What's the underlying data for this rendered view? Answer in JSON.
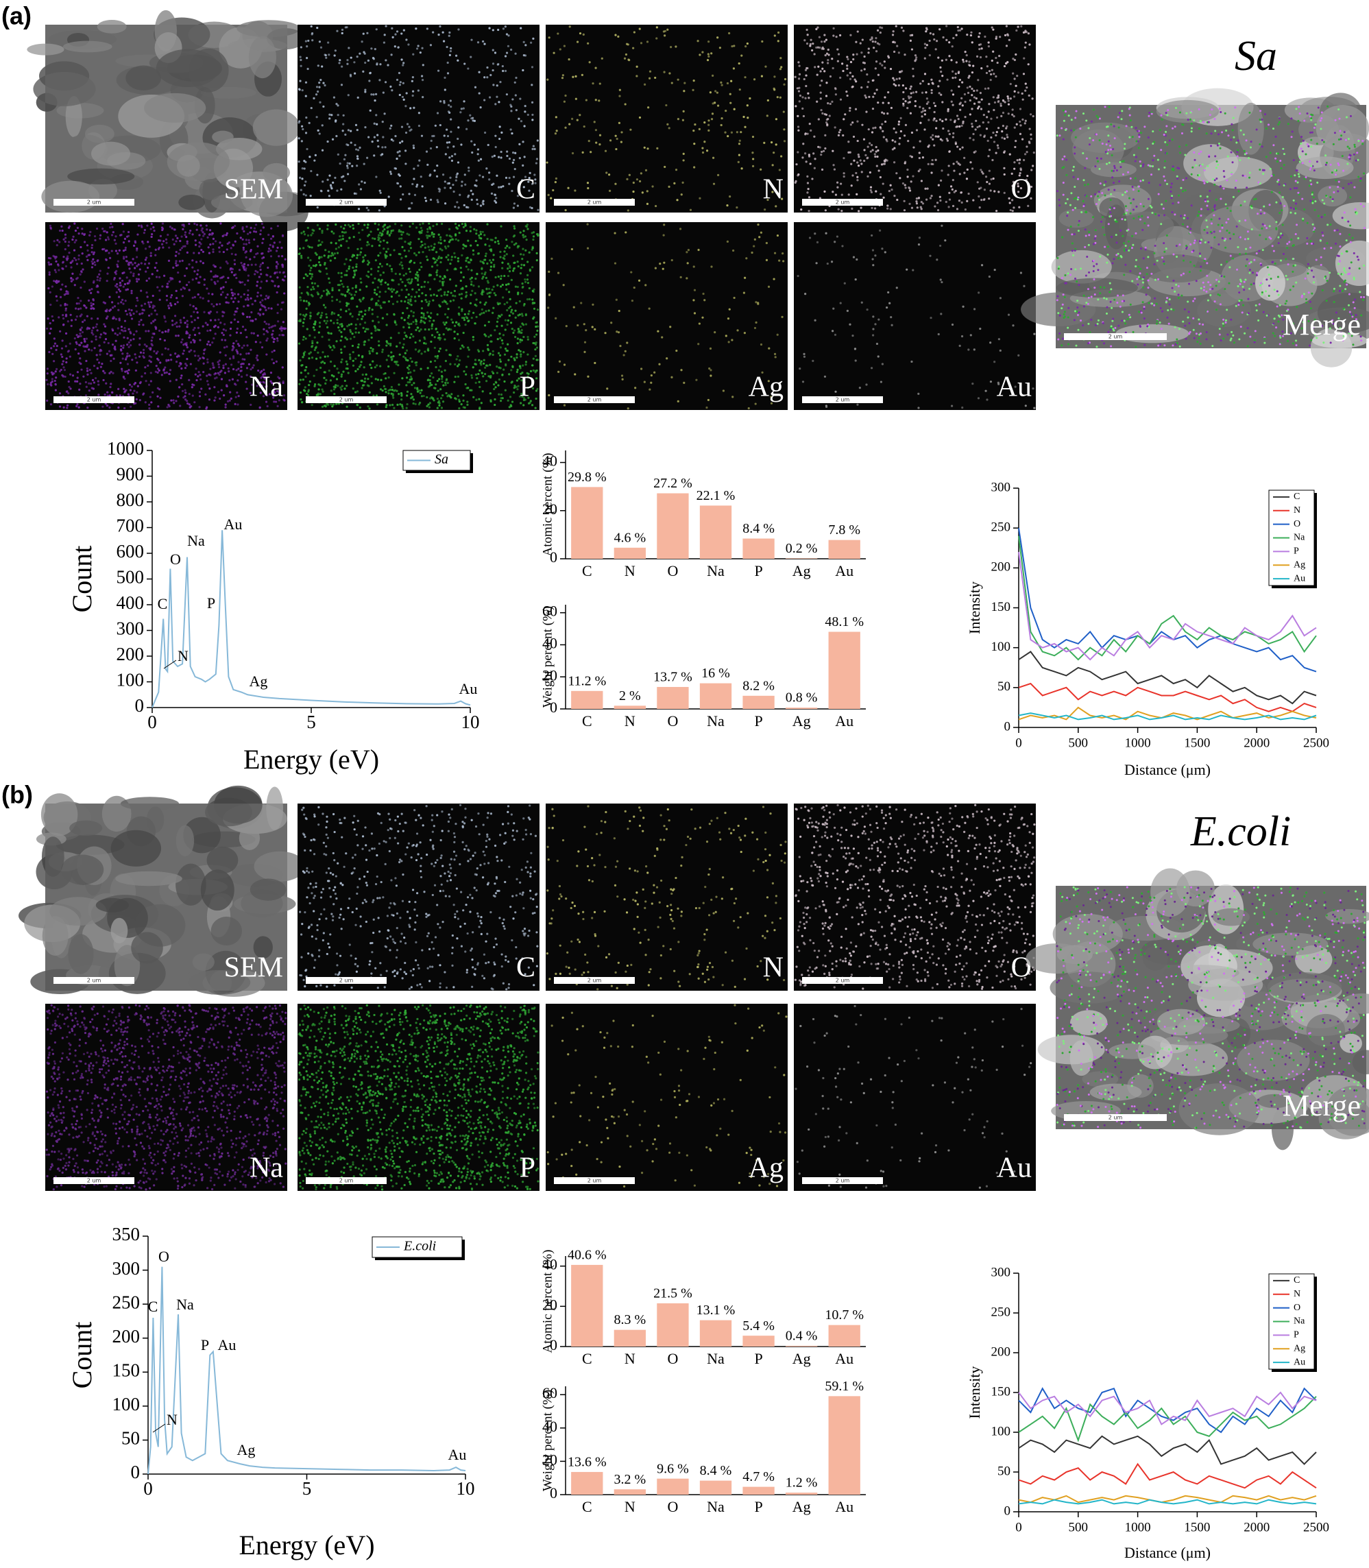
{
  "panels": [
    {
      "label": "(a)",
      "title": "Sa",
      "merge_label": "Merge",
      "scale_bar_label": "2 um",
      "tiles": [
        {
          "label": "SEM",
          "color": "#9a9a9a"
        },
        {
          "label": "C",
          "color": "#a9b8cc"
        },
        {
          "label": "N",
          "color": "#b4b464"
        },
        {
          "label": "O",
          "color": "#ccbcc6"
        },
        {
          "label": "Na",
          "color": "#7a2aa8"
        },
        {
          "label": "P",
          "color": "#2fa834"
        },
        {
          "label": "Ag",
          "color": "#a8a858"
        },
        {
          "label": "Au",
          "color": "#8c8c8c"
        }
      ]
    },
    {
      "label": "(b)",
      "title": "E.coli",
      "merge_label": "Merge",
      "scale_bar_label": "2 um",
      "tiles": [
        {
          "label": "SEM",
          "color": "#9a9a9a"
        },
        {
          "label": "C",
          "color": "#a9b8cc"
        },
        {
          "label": "N",
          "color": "#b4b464"
        },
        {
          "label": "O",
          "color": "#ccbcc6"
        },
        {
          "label": "Na",
          "color": "#6a2a90"
        },
        {
          "label": "P",
          "color": "#2fa834"
        },
        {
          "label": "Ag",
          "color": "#a8a858"
        },
        {
          "label": "Au",
          "color": "#8c8c8c"
        }
      ]
    }
  ],
  "chart_data": [
    {
      "type": "line",
      "xlabel": "Energy (eV)",
      "ylabel": "Count",
      "xlim": [
        0,
        10
      ],
      "xticks": [
        0,
        5,
        10
      ],
      "ylim": [
        0,
        1000
      ],
      "yticks": [
        0,
        100,
        200,
        300,
        400,
        500,
        600,
        700,
        800,
        900,
        1000
      ],
      "x": [
        0,
        0.1,
        0.2,
        0.35,
        0.42,
        0.48,
        0.57,
        0.65,
        0.8,
        0.95,
        1.1,
        1.2,
        1.35,
        1.55,
        1.67,
        1.8,
        2.0,
        2.1,
        2.2,
        2.3,
        2.4,
        2.55,
        2.8,
        3.0,
        3.5,
        4,
        5,
        6,
        7,
        8,
        9,
        9.5,
        9.7,
        9.85,
        10
      ],
      "series": [
        {
          "name": "Sa",
          "color": "#86b8d8",
          "values": [
            0,
            30,
            60,
            345,
            150,
            140,
            540,
            180,
            160,
            170,
            585,
            160,
            120,
            110,
            100,
            110,
            130,
            320,
            690,
            400,
            120,
            70,
            60,
            50,
            40,
            35,
            28,
            22,
            18,
            15,
            14,
            16,
            25,
            15,
            10
          ]
        }
      ],
      "annotations": [
        "C",
        "N",
        "O",
        "Na",
        "P",
        "Au",
        "Ag",
        "Au"
      ]
    },
    {
      "type": "bar",
      "ylabel": "Atomic percent (%)",
      "categories": [
        "C",
        "N",
        "O",
        "Na",
        "P",
        "Ag",
        "Au"
      ],
      "values": [
        29.8,
        4.6,
        27.2,
        22.1,
        8.4,
        0.2,
        7.8
      ],
      "value_labels": [
        "29.8 %",
        "4.6 %",
        "27.2 %",
        "22.1 %",
        "8.4 %",
        "0.2 %",
        "7.8 %"
      ],
      "color": "#f6b59e",
      "ylim": [
        0,
        45
      ],
      "yticks": [
        0,
        20,
        40
      ]
    },
    {
      "type": "bar",
      "ylabel": "Weight percent (%)",
      "categories": [
        "C",
        "N",
        "O",
        "Na",
        "P",
        "Ag",
        "Au"
      ],
      "values": [
        11.2,
        2,
        13.7,
        16,
        8.2,
        0.8,
        48.1
      ],
      "value_labels": [
        "11.2 %",
        "2 %",
        "13.7 %",
        "16 %",
        "8.2 %",
        "0.8 %",
        "48.1 %"
      ],
      "color": "#f6b59e",
      "ylim": [
        0,
        65
      ],
      "yticks": [
        0,
        20,
        40,
        60
      ]
    },
    {
      "type": "line",
      "xlabel": "Distance (μm)",
      "ylabel": "Intensity",
      "xlim": [
        0,
        2500
      ],
      "xticks": [
        0,
        500,
        1000,
        1500,
        2000,
        2500
      ],
      "ylim": [
        0,
        300
      ],
      "yticks": [
        0,
        50,
        100,
        150,
        200,
        250,
        300
      ],
      "x": [
        0,
        100,
        200,
        300,
        400,
        500,
        600,
        700,
        800,
        900,
        1000,
        1100,
        1200,
        1300,
        1400,
        1500,
        1600,
        1700,
        1800,
        1900,
        2000,
        2100,
        2200,
        2300,
        2400,
        2500
      ],
      "series": [
        {
          "name": "C",
          "color": "#333333",
          "values": [
            85,
            95,
            75,
            70,
            65,
            75,
            70,
            60,
            65,
            70,
            55,
            60,
            65,
            55,
            60,
            50,
            65,
            55,
            45,
            50,
            40,
            35,
            40,
            30,
            45,
            40
          ]
        },
        {
          "name": "N",
          "color": "#e8332a",
          "values": [
            50,
            55,
            40,
            45,
            50,
            35,
            45,
            40,
            45,
            40,
            50,
            45,
            40,
            40,
            45,
            40,
            35,
            40,
            30,
            35,
            25,
            20,
            25,
            20,
            30,
            25
          ]
        },
        {
          "name": "O",
          "color": "#1f5fc7",
          "values": [
            250,
            150,
            110,
            100,
            110,
            105,
            120,
            100,
            115,
            110,
            115,
            105,
            120,
            110,
            115,
            100,
            110,
            115,
            105,
            100,
            95,
            100,
            85,
            90,
            75,
            70
          ]
        },
        {
          "name": "Na",
          "color": "#3cae5a",
          "values": [
            240,
            120,
            95,
            90,
            100,
            85,
            100,
            90,
            110,
            95,
            115,
            105,
            130,
            140,
            120,
            110,
            125,
            115,
            110,
            120,
            115,
            105,
            110,
            120,
            95,
            115
          ]
        },
        {
          "name": "P",
          "color": "#b97de0",
          "values": [
            220,
            110,
            100,
            105,
            95,
            100,
            85,
            100,
            90,
            110,
            120,
            100,
            115,
            110,
            130,
            120,
            115,
            110,
            105,
            125,
            115,
            110,
            120,
            140,
            115,
            125
          ]
        },
        {
          "name": "Ag",
          "color": "#e0a020",
          "values": [
            10,
            15,
            12,
            15,
            10,
            25,
            15,
            12,
            15,
            10,
            20,
            15,
            12,
            18,
            15,
            10,
            15,
            20,
            12,
            15,
            18,
            12,
            15,
            20,
            15,
            12
          ]
        },
        {
          "name": "Au",
          "color": "#22b5c8",
          "values": [
            15,
            18,
            15,
            12,
            15,
            10,
            12,
            15,
            10,
            12,
            15,
            10,
            12,
            15,
            10,
            12,
            10,
            15,
            12,
            10,
            12,
            15,
            10,
            12,
            10,
            15
          ]
        }
      ]
    },
    {
      "type": "line",
      "xlabel": "Energy (eV)",
      "ylabel": "Count",
      "xlim": [
        0,
        10
      ],
      "xticks": [
        0,
        5,
        10
      ],
      "ylim": [
        0,
        350
      ],
      "yticks": [
        0,
        50,
        100,
        150,
        200,
        250,
        300,
        350
      ],
      "x": [
        0,
        0.08,
        0.16,
        0.24,
        0.32,
        0.44,
        0.52,
        0.6,
        0.75,
        0.95,
        1.05,
        1.2,
        1.4,
        1.6,
        1.8,
        1.95,
        2.05,
        2.15,
        2.3,
        2.5,
        2.9,
        3.2,
        3.6,
        4,
        5,
        6,
        7,
        8,
        9,
        9.5,
        9.7,
        9.85,
        10
      ],
      "series": [
        {
          "name": "E.coli",
          "color": "#86b8d8",
          "values": [
            0,
            40,
            230,
            60,
            40,
            305,
            80,
            30,
            40,
            235,
            60,
            25,
            20,
            25,
            30,
            175,
            180,
            120,
            30,
            20,
            15,
            12,
            10,
            9,
            8,
            7,
            6,
            6,
            5,
            6,
            10,
            6,
            5
          ]
        }
      ],
      "annotations": [
        "C",
        "N",
        "O",
        "Na",
        "P",
        "Au",
        "Ag",
        "Au"
      ]
    },
    {
      "type": "bar",
      "ylabel": "Atomic percent (%)",
      "categories": [
        "C",
        "N",
        "O",
        "Na",
        "P",
        "Ag",
        "Au"
      ],
      "values": [
        40.6,
        8.3,
        21.5,
        13.1,
        5.4,
        0.4,
        10.7
      ],
      "value_labels": [
        "40.6 %",
        "8.3 %",
        "21.5 %",
        "13.1 %",
        "5.4 %",
        "0.4 %",
        "10.7 %"
      ],
      "color": "#f6b59e",
      "ylim": [
        0,
        45
      ],
      "yticks": [
        0,
        20,
        40
      ]
    },
    {
      "type": "bar",
      "ylabel": "Weight percent (%)",
      "categories": [
        "C",
        "N",
        "O",
        "Na",
        "P",
        "Ag",
        "Au"
      ],
      "values": [
        13.6,
        3.2,
        9.6,
        8.4,
        4.7,
        1.2,
        59.1
      ],
      "value_labels": [
        "13.6 %",
        "3.2 %",
        "9.6 %",
        "8.4 %",
        "4.7 %",
        "1.2 %",
        "59.1 %"
      ],
      "color": "#f6b59e",
      "ylim": [
        0,
        65
      ],
      "yticks": [
        0,
        20,
        40,
        60
      ]
    },
    {
      "type": "line",
      "xlabel": "Distance (μm)",
      "ylabel": "Intensity",
      "xlim": [
        0,
        2500
      ],
      "xticks": [
        0,
        500,
        1000,
        1500,
        2000,
        2500
      ],
      "ylim": [
        0,
        300
      ],
      "yticks": [
        0,
        50,
        100,
        150,
        200,
        250,
        300
      ],
      "x": [
        0,
        100,
        200,
        300,
        400,
        500,
        600,
        700,
        800,
        900,
        1000,
        1100,
        1200,
        1300,
        1400,
        1500,
        1600,
        1700,
        1800,
        1900,
        2000,
        2100,
        2200,
        2300,
        2400,
        2500
      ],
      "series": [
        {
          "name": "C",
          "color": "#333333",
          "values": [
            80,
            90,
            85,
            75,
            90,
            85,
            80,
            95,
            85,
            90,
            95,
            85,
            70,
            80,
            85,
            75,
            90,
            60,
            65,
            70,
            80,
            65,
            70,
            75,
            60,
            75
          ]
        },
        {
          "name": "N",
          "color": "#e8332a",
          "values": [
            40,
            35,
            45,
            40,
            50,
            55,
            40,
            50,
            45,
            35,
            60,
            40,
            45,
            50,
            40,
            35,
            45,
            40,
            35,
            30,
            40,
            45,
            35,
            50,
            40,
            30
          ]
        },
        {
          "name": "O",
          "color": "#1f5fc7",
          "values": [
            140,
            125,
            155,
            130,
            140,
            130,
            125,
            150,
            155,
            120,
            140,
            130,
            120,
            115,
            125,
            130,
            110,
            100,
            120,
            110,
            130,
            120,
            140,
            125,
            155,
            140
          ]
        },
        {
          "name": "Na",
          "color": "#3cae5a",
          "values": [
            100,
            110,
            120,
            105,
            130,
            90,
            135,
            120,
            110,
            125,
            105,
            115,
            130,
            110,
            120,
            100,
            95,
            110,
            125,
            115,
            120,
            105,
            110,
            120,
            130,
            145
          ]
        },
        {
          "name": "P",
          "color": "#b97de0",
          "values": [
            150,
            130,
            140,
            145,
            125,
            135,
            120,
            140,
            145,
            125,
            130,
            140,
            110,
            120,
            115,
            140,
            120,
            125,
            130,
            120,
            145,
            135,
            150,
            130,
            145,
            140
          ]
        },
        {
          "name": "Ag",
          "color": "#e0a020",
          "values": [
            15,
            12,
            18,
            15,
            20,
            12,
            15,
            18,
            15,
            20,
            18,
            15,
            12,
            15,
            20,
            18,
            15,
            12,
            20,
            18,
            15,
            20,
            15,
            18,
            15,
            20
          ]
        },
        {
          "name": "Au",
          "color": "#22b5c8",
          "values": [
            10,
            12,
            10,
            15,
            12,
            10,
            12,
            15,
            10,
            12,
            10,
            15,
            12,
            10,
            12,
            15,
            10,
            12,
            10,
            12,
            10,
            15,
            12,
            10,
            12,
            10
          ]
        }
      ]
    }
  ]
}
